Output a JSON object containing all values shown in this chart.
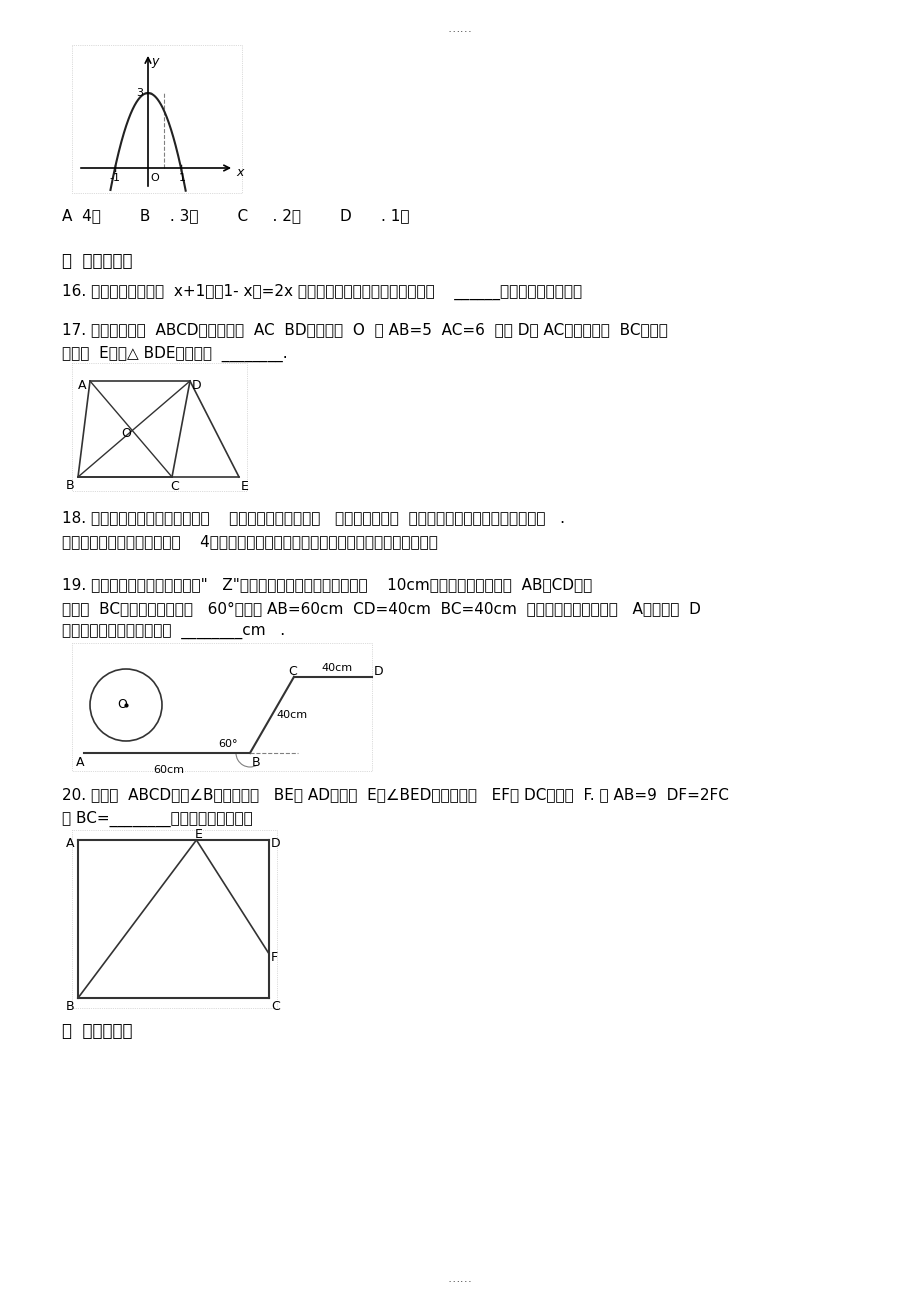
{
  "page_bg": "#ffffff",
  "top_dots": "......",
  "bottom_dots": "......",
  "q16": "16. 把一元二次方程（  x+1）（1- x）=2x 化成二次项系数大于零的一般式为    ______，其二次项系数是",
  "options": "A  4个        B    . 3个        C     . 2个        D      . 1个",
  "sec2": "二  、填空题：",
  "sec3": "三  、计算题："
}
